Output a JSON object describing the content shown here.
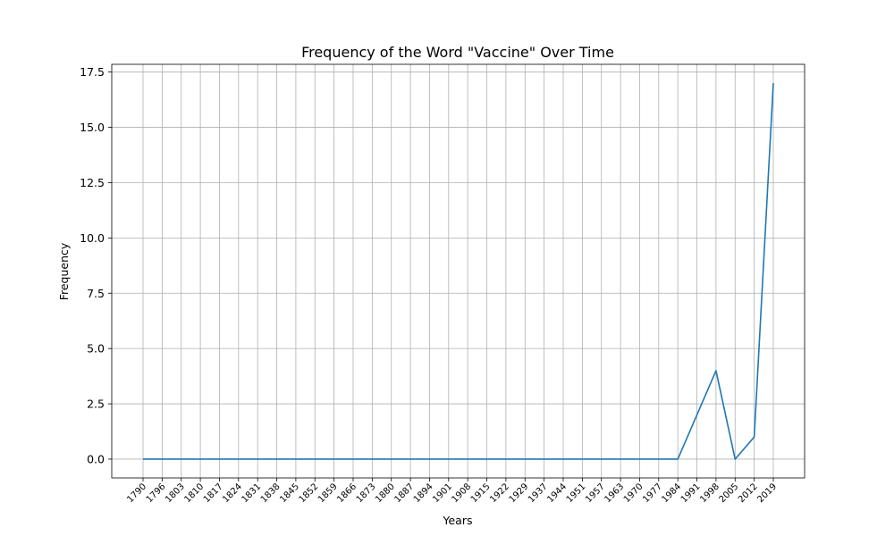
{
  "chart_data": {
    "type": "line",
    "title": "Frequency of the Word \"Vaccine\" Over Time",
    "xlabel": "Years",
    "ylabel": "Frequency",
    "x": [
      1790,
      1796,
      1803,
      1810,
      1817,
      1824,
      1831,
      1838,
      1845,
      1852,
      1859,
      1866,
      1873,
      1880,
      1887,
      1894,
      1901,
      1908,
      1915,
      1922,
      1929,
      1937,
      1944,
      1951,
      1957,
      1963,
      1970,
      1977,
      1984,
      1991,
      1998,
      2005,
      2012,
      2019
    ],
    "series": [
      {
        "values": [
          0,
          0,
          0,
          0,
          0,
          0,
          0,
          0,
          0,
          0,
          0,
          0,
          0,
          0,
          0,
          0,
          0,
          0,
          0,
          0,
          0,
          0,
          0,
          0,
          0,
          0,
          0,
          0,
          0,
          2,
          4,
          0,
          1,
          17
        ],
        "color": "#1f77b4"
      }
    ],
    "yticks": [
      0.0,
      2.5,
      5.0,
      7.5,
      10.0,
      12.5,
      15.0,
      17.5
    ],
    "ytick_labels": [
      "0.0",
      "2.5",
      "5.0",
      "7.5",
      "10.0",
      "12.5",
      "15.0",
      "17.5"
    ],
    "ylim": [
      -0.85,
      17.85
    ],
    "grid": true
  }
}
